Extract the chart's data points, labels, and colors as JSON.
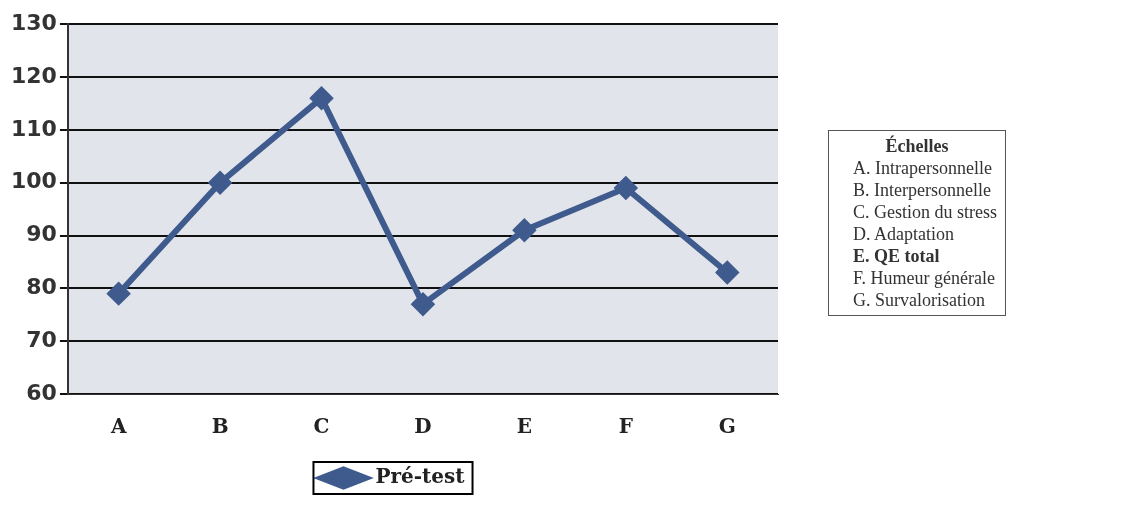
{
  "chart_data": {
    "type": "line",
    "categories": [
      "A",
      "B",
      "C",
      "D",
      "E",
      "F",
      "G"
    ],
    "series": [
      {
        "name": "Pré-test",
        "color": "#3f5a8c",
        "values": [
          79,
          100,
          116,
          77,
          91,
          99,
          83
        ]
      }
    ],
    "ylim": [
      60,
      130
    ],
    "yticks": [
      60,
      70,
      80,
      90,
      100,
      110,
      120,
      130
    ],
    "grid": "y",
    "legend": "bottom",
    "marker": "diamond",
    "annotations": [
      "Échelles",
      "A. Intrapersonnelle",
      "B. Interpersonnelle",
      "C. Gestion du stress",
      "D. Adaptation",
      "E. QE total",
      "F. Humeur générale",
      "G. Survalorisation"
    ]
  }
}
